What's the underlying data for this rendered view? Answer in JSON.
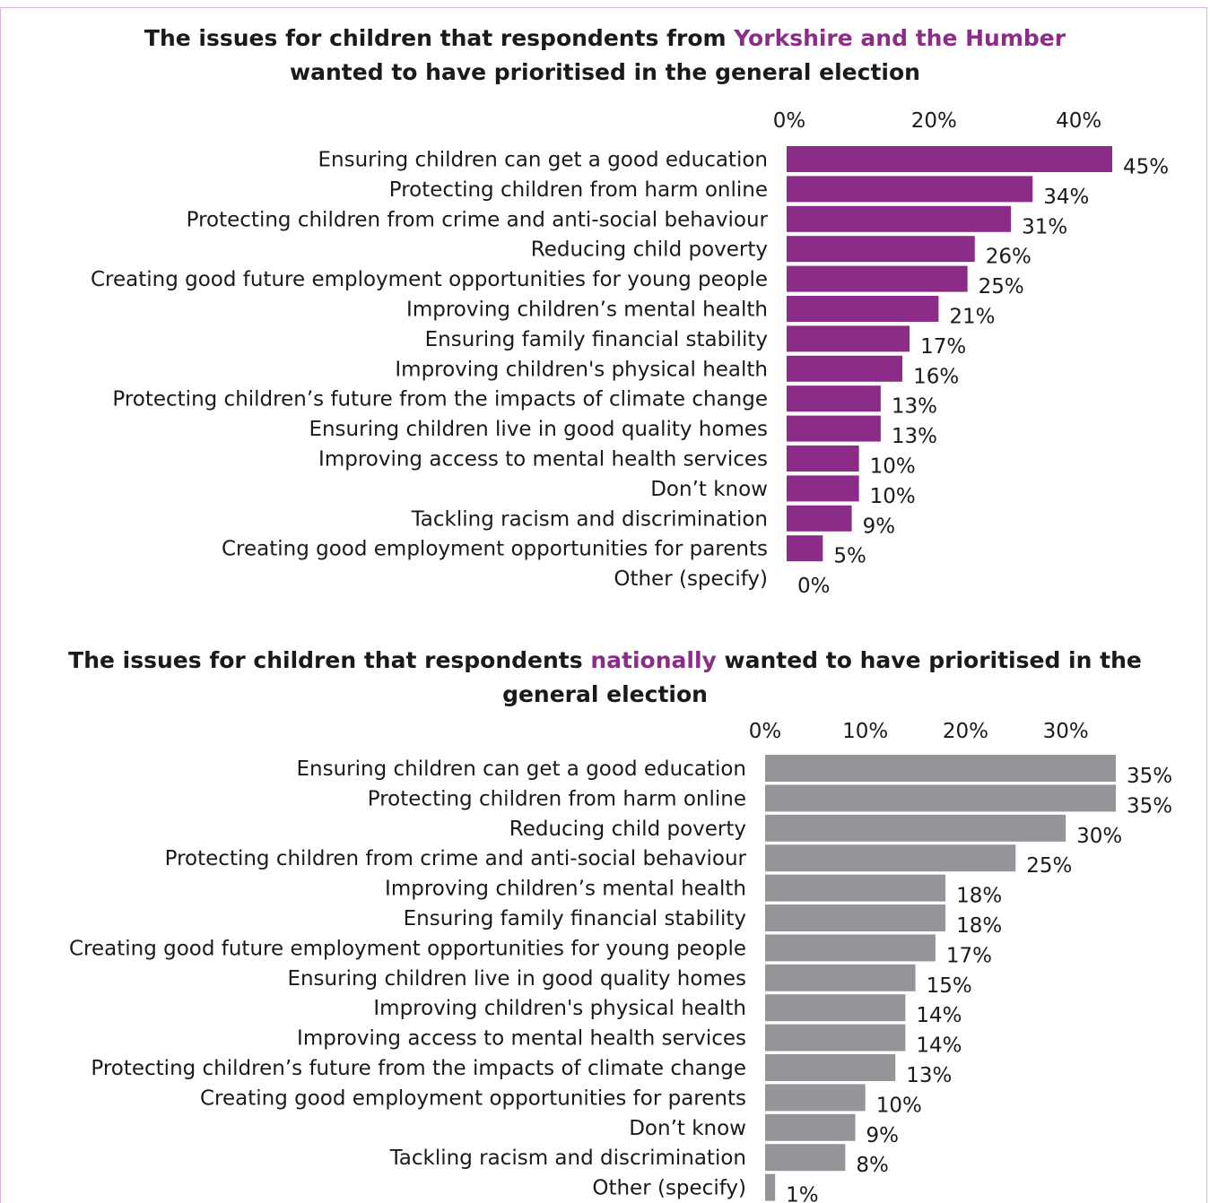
{
  "chart_data": [
    {
      "type": "bar",
      "orientation": "horizontal",
      "title": {
        "before": "The issues for children that respondents from ",
        "highlight": "Yorkshire and the Humber",
        "after": " wanted to have prioritised in the general election"
      },
      "bar_color": "#8b2d88",
      "highlight_color": "#8b2d88",
      "xlim": [
        0,
        45
      ],
      "ticks": [
        0,
        20,
        40
      ],
      "tick_labels": [
        "0%",
        "20%",
        "40%"
      ],
      "categories": [
        "Ensuring children can get a good education",
        "Protecting children from harm online",
        "Protecting children from crime and anti-social behaviour",
        "Reducing child poverty",
        "Creating good future employment opportunities for young people",
        "Improving children’s mental health",
        "Ensuring family financial stability",
        "Improving children's physical health",
        "Protecting children’s future from the impacts of climate change",
        "Ensuring children live in good quality homes",
        "Improving access to mental health services",
        "Don’t know",
        "Tackling racism and discrimination",
        "Creating good employment opportunities for parents",
        "Other (specify)"
      ],
      "values": [
        45,
        34,
        31,
        26,
        25,
        21,
        17,
        16,
        13,
        13,
        10,
        10,
        9,
        5,
        0
      ],
      "value_labels": [
        "45%",
        "34%",
        "31%",
        "26%",
        "25%",
        "21%",
        "17%",
        "16%",
        "13%",
        "13%",
        "10%",
        "10%",
        "9%",
        "5%",
        "0%"
      ]
    },
    {
      "type": "bar",
      "orientation": "horizontal",
      "title": {
        "before": "The issues for children that respondents ",
        "highlight": "nationally",
        "after": " wanted to have prioritised in the general election"
      },
      "bar_color": "#939598",
      "highlight_color": "#8b2d88",
      "xlim": [
        0,
        35
      ],
      "ticks": [
        0,
        10,
        20,
        30
      ],
      "tick_labels": [
        "0%",
        "10%",
        "20%",
        "30%"
      ],
      "categories": [
        "Ensuring children can get a good education",
        "Protecting children from harm online",
        "Reducing child poverty",
        "Protecting children from crime and anti-social behaviour",
        "Improving children’s mental health",
        "Ensuring family financial stability",
        "Creating good future employment opportunities for young people",
        "Ensuring children live in good quality homes",
        "Improving children's physical health",
        "Improving access to mental health services",
        "Protecting children’s future from the impacts of climate change",
        "Creating good employment opportunities for parents",
        "Don’t know",
        "Tackling racism and discrimination",
        "Other (specify)"
      ],
      "values": [
        35,
        35,
        30,
        25,
        18,
        18,
        17,
        15,
        14,
        14,
        13,
        10,
        9,
        8,
        1
      ],
      "value_labels": [
        "35%",
        "35%",
        "30%",
        "25%",
        "18%",
        "18%",
        "17%",
        "15%",
        "14%",
        "14%",
        "13%",
        "10%",
        "9%",
        "8%",
        "1%"
      ]
    }
  ]
}
